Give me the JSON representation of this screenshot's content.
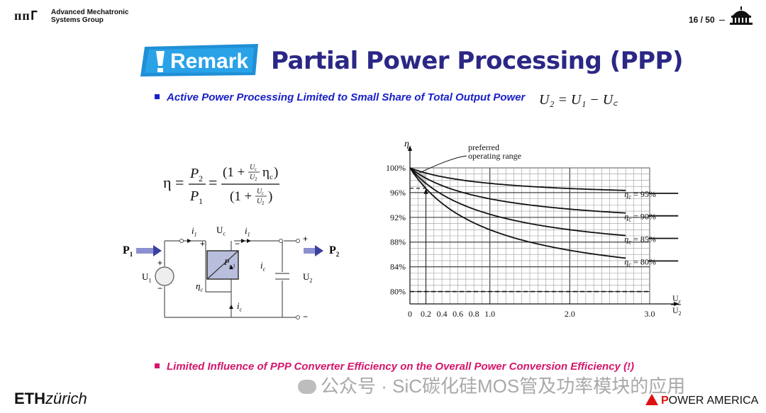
{
  "header": {
    "logo": "ᴨᴨΓ",
    "group_line1": "Advanced Mechatronic",
    "group_line2": "Systems Group",
    "page_number": "16 / 50"
  },
  "slide": {
    "remark_label": "Remark",
    "title": "Partial Power Processing (PPP)",
    "bullet1": "Active Power Processing Limited to Small Share of Total Output Power",
    "equation_top": "U₂ = U₁ − U꜀",
    "bullet2": "Limited Influence of PPP Converter Efficiency on the Overall Power Conversion Efficiency (!)"
  },
  "colors": {
    "title_blue": "#2b2785",
    "bullet1_blue": "#1a20c8",
    "bullet2_magenta": "#d5166b",
    "remark_blue": "#1f8fd6",
    "arrow_blue": "#3b3fa0"
  },
  "circuit": {
    "P1": "P",
    "P1_sub": "1",
    "P2": "P",
    "P2_sub": "2",
    "i1_left": "i",
    "i1_right": "i",
    "i1_sub": "1",
    "Uc": "U",
    "Uc_sub": "c",
    "ic_right": "i",
    "ic_bottom": "i",
    "ic_sub": "c",
    "U1": "U",
    "U1_sub": "1",
    "U2": "U",
    "U2_sub": "2",
    "eta_c": "η",
    "eta_c_sub": "c",
    "Pc1": "P",
    "Pc1_sub": "c,1",
    "plus": "+",
    "minus": "−"
  },
  "chart_data": {
    "type": "line",
    "ylabel": "η",
    "xlabel_num": "U",
    "xlabel_num_sub": "c",
    "xlabel_den": "U",
    "xlabel_den_sub": "2",
    "xlim": [
      0,
      3.0
    ],
    "ylim": [
      78,
      100
    ],
    "x_ticks": [
      "0",
      "0.2",
      "0.4",
      "0.6",
      "0.8",
      "1.0",
      "2.0",
      "3.0"
    ],
    "x_tick_values": [
      0,
      0.2,
      0.4,
      0.6,
      0.8,
      1.0,
      2.0,
      3.0
    ],
    "y_ticks": [
      "100%",
      "96%",
      "92%",
      "88%",
      "84%",
      "80%"
    ],
    "y_tick_values": [
      100,
      96,
      92,
      88,
      84,
      80
    ],
    "annotation": "preferred operating range",
    "annotation_line1": "preferred",
    "annotation_line2": "operating range",
    "preferred_range_x": [
      0,
      0.2
    ],
    "dashed_reference_y": [
      96.7,
      80
    ],
    "series": [
      {
        "name": "ηc = 95%",
        "eta_c": 0.95,
        "label_eta": "η",
        "label_sub": "c",
        "label_val": " = 95%"
      },
      {
        "name": "ηc = 90%",
        "eta_c": 0.9,
        "label_eta": "η",
        "label_sub": "c",
        "label_val": " = 90%"
      },
      {
        "name": "ηc = 85%",
        "eta_c": 0.85,
        "label_eta": "η",
        "label_sub": "c",
        "label_val": " = 85%"
      },
      {
        "name": "ηc = 80%",
        "eta_c": 0.8,
        "label_eta": "η",
        "label_sub": "c",
        "label_val": " = 80%"
      }
    ],
    "grid": true
  },
  "footer": {
    "eth_bold": "ETH",
    "eth_rest": "zürich",
    "watermark": "公众号 · SiC碳化硅MOS管及功率模块的应用",
    "sponsor_bold": "P",
    "sponsor_rest": "OWER",
    "sponsor_second": "AMERICA"
  }
}
